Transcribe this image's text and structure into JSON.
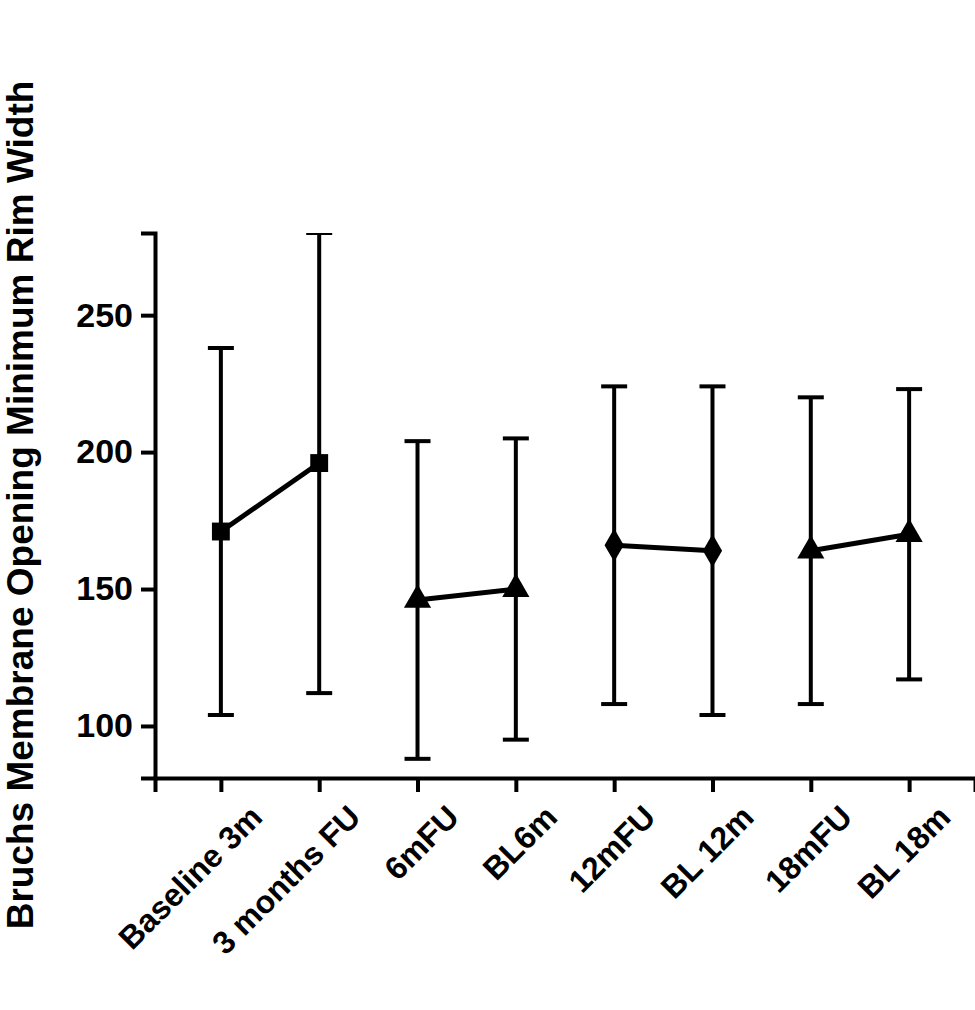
{
  "chart_data": {
    "type": "line",
    "y_label": "Bruchs Membrane Opening Minimum Rim Width",
    "categories": [
      "Baseline 3m",
      "3 months FU",
      "6mFU",
      "BL6m",
      "12mFU",
      "BL 12m",
      "18mFU",
      "BL 18m"
    ],
    "ylim": [
      81,
      280
    ],
    "yticks": [
      100,
      150,
      200,
      250
    ],
    "grid": false,
    "color": "#000000",
    "series": [
      {
        "values": [
          171,
          196,
          null,
          null,
          null,
          null,
          null,
          null
        ],
        "errors": [
          67,
          84,
          null,
          null,
          null,
          null,
          null,
          null
        ],
        "marker": "square"
      },
      {
        "values": [
          null,
          null,
          146,
          150,
          null,
          null,
          null,
          null
        ],
        "errors": [
          null,
          null,
          58,
          55,
          null,
          null,
          null,
          null
        ],
        "marker": "triangle"
      },
      {
        "values": [
          null,
          null,
          null,
          null,
          166,
          164,
          null,
          null
        ],
        "errors": [
          null,
          null,
          null,
          null,
          58,
          60,
          null,
          null
        ],
        "marker": "diamond"
      },
      {
        "values": [
          null,
          null,
          null,
          null,
          null,
          null,
          164,
          170
        ],
        "errors": [
          null,
          null,
          null,
          null,
          null,
          null,
          56,
          53
        ],
        "marker": "triangle"
      }
    ]
  }
}
